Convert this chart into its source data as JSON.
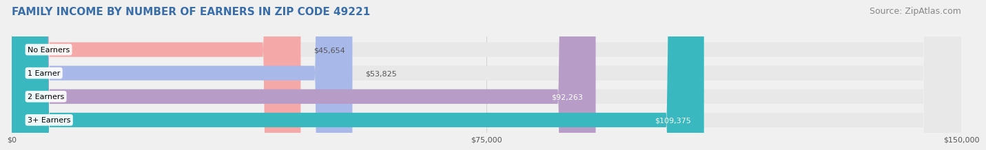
{
  "title": "FAMILY INCOME BY NUMBER OF EARNERS IN ZIP CODE 49221",
  "source": "Source: ZipAtlas.com",
  "categories": [
    "No Earners",
    "1 Earner",
    "2 Earners",
    "3+ Earners"
  ],
  "values": [
    45654,
    53825,
    92263,
    109375
  ],
  "bar_colors": [
    "#f4a8a8",
    "#a8b8e8",
    "#b89cc8",
    "#3ab8c0"
  ],
  "label_colors": [
    "#555555",
    "#555555",
    "#ffffff",
    "#ffffff"
  ],
  "x_max": 150000,
  "x_ticks": [
    0,
    75000,
    150000
  ],
  "x_tick_labels": [
    "$0",
    "$75,000",
    "$150,000"
  ],
  "background_color": "#f0f0f0",
  "bar_background_color": "#e8e8e8",
  "title_color": "#3a6ea8",
  "source_color": "#888888",
  "title_fontsize": 11,
  "source_fontsize": 9,
  "label_fontsize": 8,
  "category_fontsize": 8,
  "tick_fontsize": 8
}
